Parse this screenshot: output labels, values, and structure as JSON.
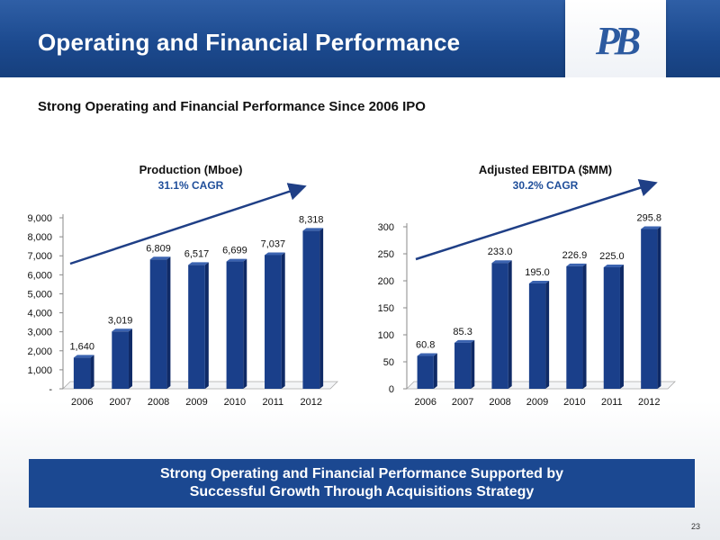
{
  "slide": {
    "title": "Operating and Financial Performance",
    "subtitle": "Strong Operating and Financial Performance Since 2006 IPO",
    "logo": "PB",
    "banner_line1": "Strong Operating and Financial Performance Supported by",
    "banner_line2": "Successful Growth Through Acquisitions Strategy",
    "page_number": "23"
  },
  "colors": {
    "header": "#1c4a8f",
    "bar": "#1a3f8a",
    "arrow": "#1f3f86",
    "banner": "#1b4891"
  },
  "chart_data": [
    {
      "type": "bar",
      "title": "Production (Mboe)",
      "annotation": "31.1% CAGR",
      "categories": [
        "2006",
        "2007",
        "2008",
        "2009",
        "2010",
        "2011",
        "2012"
      ],
      "values": [
        1640,
        3019,
        6809,
        6517,
        6699,
        7037,
        8318
      ],
      "value_labels": [
        "1,640",
        "3,019",
        "6,809",
        "6,517",
        "6,699",
        "7,037",
        "8,318"
      ],
      "ylim": [
        0,
        9000
      ],
      "yticks": [
        0,
        1000,
        2000,
        3000,
        4000,
        5000,
        6000,
        7000,
        8000,
        9000
      ],
      "ytick_labels": [
        "-",
        "1,000",
        "2,000",
        "3,000",
        "4,000",
        "5,000",
        "6,000",
        "7,000",
        "8,000",
        "9,000"
      ],
      "grid": false,
      "trend_arrow": true
    },
    {
      "type": "bar",
      "title": "Adjusted EBITDA ($MM)",
      "annotation": "30.2% CAGR",
      "categories": [
        "2006",
        "2007",
        "2008",
        "2009",
        "2010",
        "2011",
        "2012"
      ],
      "values": [
        60.8,
        85.3,
        233.0,
        195.0,
        226.9,
        225.0,
        295.8
      ],
      "value_labels": [
        "60.8",
        "85.3",
        "233.0",
        "195.0",
        "226.9",
        "225.0",
        "295.8"
      ],
      "ylim": [
        0,
        300
      ],
      "yticks": [
        0,
        50,
        100,
        150,
        200,
        250,
        300
      ],
      "ytick_labels": [
        "0",
        "50",
        "100",
        "150",
        "200",
        "250",
        "300"
      ],
      "grid": false,
      "trend_arrow": true
    }
  ]
}
